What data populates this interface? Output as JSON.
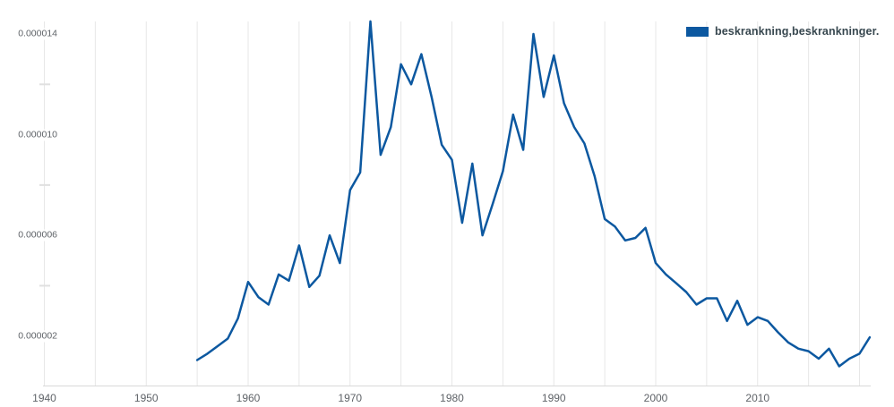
{
  "chart_data": {
    "type": "line",
    "title": "",
    "grid": "vertical-only",
    "legend": {
      "label": "beskrankning,beskrankninger.",
      "position": "top-right"
    },
    "x_axis": {
      "range": [
        1940,
        2021.3
      ],
      "tick_labels": [
        "1940",
        "1950",
        "1960",
        "1970",
        "1980",
        "1990",
        "2000",
        "2010"
      ],
      "tick_years": [
        1940,
        1950,
        1960,
        1970,
        1980,
        1990,
        2000,
        2010
      ],
      "gridline_years": [
        1940,
        1945,
        1950,
        1955,
        1960,
        1965,
        1970,
        1975,
        1980,
        1985,
        1990,
        1995,
        2000,
        2005,
        2010,
        2015,
        2020
      ]
    },
    "y_axis": {
      "range": [
        0,
        1.45e-05
      ],
      "ticks": [
        {
          "label": "0.000002",
          "value": 2e-06
        },
        {
          "label": "0.000006",
          "value": 6e-06
        },
        {
          "label": "0.000010",
          "value": 1e-05
        },
        {
          "label": "0.000014",
          "value": 1.4e-05
        }
      ],
      "minor_tick_values": [
        4e-06,
        8e-06,
        1.2e-05
      ]
    },
    "series": [
      {
        "name": "beskrankning,beskrankninger.",
        "color": "#0c58a0",
        "years": [
          1955,
          1956,
          1957,
          1958,
          1959,
          1960,
          1961,
          1962,
          1963,
          1964,
          1965,
          1966,
          1967,
          1968,
          1969,
          1970,
          1971,
          1972,
          1973,
          1974,
          1975,
          1976,
          1977,
          1978,
          1979,
          1980,
          1981,
          1982,
          1983,
          1984,
          1985,
          1986,
          1987,
          1988,
          1989,
          1990,
          1991,
          1992,
          1993,
          1994,
          1995,
          1996,
          1997,
          1998,
          1999,
          2000,
          2001,
          2002,
          2003,
          2004,
          2005,
          2006,
          2007,
          2008,
          2009,
          2010,
          2011,
          2012,
          2013,
          2014,
          2015,
          2016,
          2017,
          2018,
          2019,
          2020,
          2021
        ],
        "values": [
          1.05e-06,
          1.3e-06,
          1.6e-06,
          1.9e-06,
          2.7e-06,
          4.15e-06,
          3.55e-06,
          3.25e-06,
          4.45e-06,
          4.2e-06,
          5.6e-06,
          3.95e-06,
          4.4e-06,
          6e-06,
          4.9e-06,
          7.8e-06,
          8.5e-06,
          1.45e-05,
          9.2e-06,
          1.03e-05,
          1.28e-05,
          1.2e-05,
          1.32e-05,
          1.15e-05,
          9.6e-06,
          9e-06,
          6.5e-06,
          8.85e-06,
          6e-06,
          7.25e-06,
          8.55e-06,
          1.08e-05,
          9.4e-06,
          1.4e-05,
          1.15e-05,
          1.315e-05,
          1.125e-05,
          1.03e-05,
          9.65e-06,
          8.35e-06,
          6.65e-06,
          6.35e-06,
          5.8e-06,
          5.9e-06,
          6.3e-06,
          4.9e-06,
          4.45e-06,
          4.1e-06,
          3.75e-06,
          3.25e-06,
          3.5e-06,
          3.5e-06,
          2.6e-06,
          3.4e-06,
          2.45e-06,
          2.75e-06,
          2.6e-06,
          2.15e-06,
          1.75e-06,
          1.5e-06,
          1.4e-06,
          1.1e-06,
          1.5e-06,
          8e-07,
          1.1e-06,
          1.3e-06,
          1.95e-06
        ]
      }
    ]
  },
  "colors": {
    "background": "#ffffff",
    "series": "#0c58a0",
    "gridline": "#e7e7e7",
    "minor_tick": "#e0e0e0",
    "axis_line": "#d9d9d9",
    "tick_label": "#5f6368",
    "legend_text": "#37474f"
  }
}
